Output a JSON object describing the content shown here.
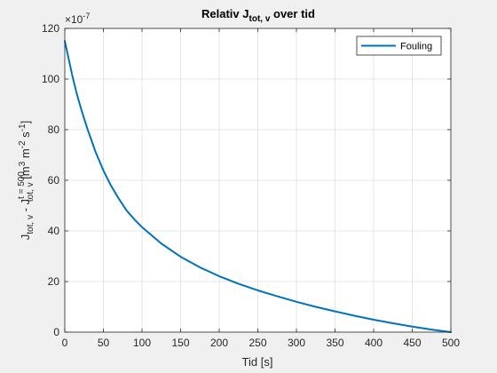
{
  "chart_data": {
    "type": "line",
    "title": {
      "main": "Relativ J",
      "sub": "tot, v",
      "rest": " over tid"
    },
    "xlabel": "Tid [s]",
    "ylabel": {
      "p1": "J",
      "p1_sub": "tot, v",
      "p2": " - J",
      "p2_sup": "t = 500",
      "p2_sub": "tot, v",
      "p3": "    [m",
      "p3_sup": "3",
      "p4": " m",
      "p4_sup": "-2",
      "p5": " s",
      "p5_sup": "-1",
      "p6": "]"
    },
    "y_multiplier": {
      "base": "×10",
      "exp": "-7"
    },
    "xlim": [
      0,
      500
    ],
    "ylim": [
      0,
      120
    ],
    "x_ticks": [
      0,
      50,
      100,
      150,
      200,
      250,
      300,
      350,
      400,
      450,
      500
    ],
    "y_ticks": [
      0,
      20,
      40,
      60,
      80,
      100,
      120
    ],
    "grid": true,
    "legend_position": "top-right",
    "colors": {
      "series": "#0072bd",
      "grid": "#dfdfdf",
      "axes": "#262626",
      "background": "#ffffff",
      "figure": "#f0f0f0"
    },
    "series": [
      {
        "name": "Fouling",
        "x": [
          0,
          5,
          10,
          15,
          20,
          25,
          30,
          40,
          50,
          60,
          70,
          80,
          90,
          100,
          125,
          150,
          175,
          200,
          225,
          250,
          275,
          300,
          325,
          350,
          375,
          400,
          425,
          450,
          475,
          500
        ],
        "y": [
          115,
          108,
          101,
          94.8,
          89.4,
          84.4,
          79.7,
          71.1,
          63.9,
          57.8,
          52.7,
          48.1,
          44.6,
          41.5,
          35.0,
          29.8,
          25.6,
          22.1,
          19.1,
          16.5,
          14.2,
          12.0,
          10.0,
          8.2,
          6.5,
          4.9,
          3.5,
          2.2,
          1.0,
          0
        ]
      }
    ]
  }
}
